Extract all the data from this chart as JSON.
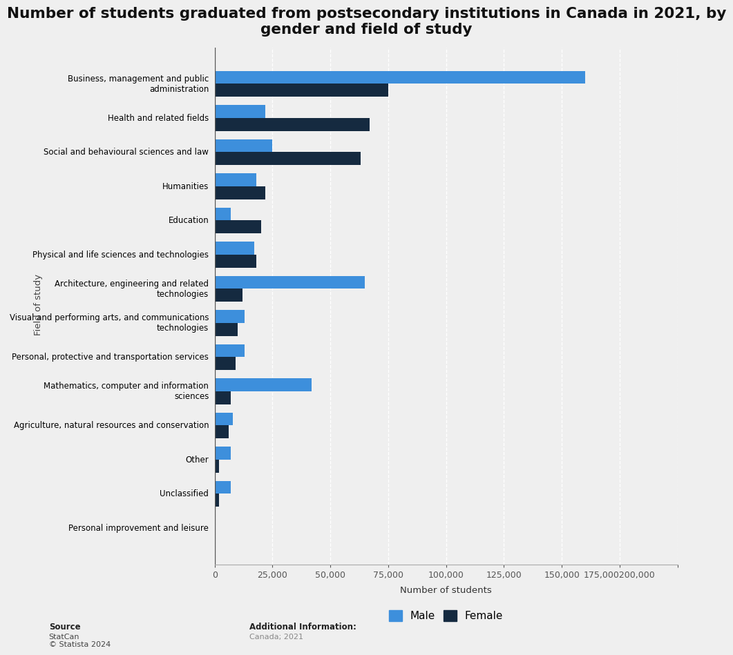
{
  "title": "Number of students graduated from postsecondary institutions in Canada in 2021, by\ngender and field of study",
  "categories": [
    "Business, management and public\nadministration",
    "Health and related fields",
    "Social and behavioural sciences and law",
    "Humanities",
    "Education",
    "Physical and life sciences and technologies",
    "Architecture, engineering and related\ntechnologies",
    "Visual and performing arts, and communications\ntechnologies",
    "Personal, protective and transportation services",
    "Mathematics, computer and information\nsciences",
    "Agriculture, natural resources and conservation",
    "Other",
    "Unclassified",
    "Personal improvement and leisure"
  ],
  "female_values": [
    75000,
    67000,
    63000,
    22000,
    20000,
    18000,
    12000,
    10000,
    9000,
    7000,
    6000,
    2000,
    2000,
    0
  ],
  "male_values": [
    160000,
    22000,
    25000,
    18000,
    7000,
    17000,
    65000,
    13000,
    13000,
    42000,
    8000,
    7000,
    7000,
    0
  ],
  "female_color": "#152a40",
  "male_color": "#3d8fdc",
  "background_color": "#efefef",
  "plot_background_color": "#efefef",
  "xlabel": "Number of students",
  "ylabel": "Field of study",
  "xlim": [
    0,
    200000
  ],
  "xticks": [
    0,
    25000,
    50000,
    75000,
    100000,
    125000,
    150000,
    175000,
    200000
  ],
  "legend_male_label": "Male",
  "legend_female_label": "Female",
  "source_label": "Source",
  "source_body": "StatCan\n© Statista 2024",
  "additional_label": "Additional Information:",
  "additional_body": "Canada; 2021",
  "bar_height": 0.38,
  "title_fontsize": 15.5,
  "axis_fontsize": 9.5,
  "tick_fontsize": 9
}
